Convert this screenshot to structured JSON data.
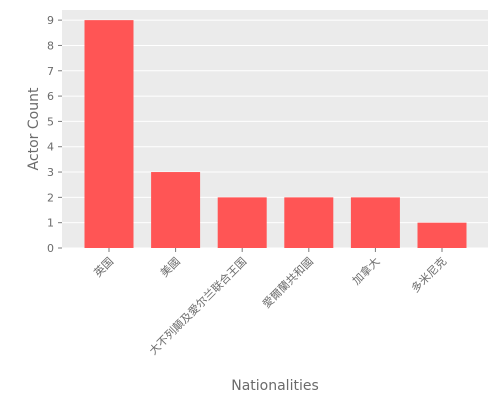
{
  "chart_data": {
    "type": "bar",
    "xlabel": "Nationalities",
    "ylabel": "Actor Count",
    "categories": [
      "英国",
      "美國",
      "大不列顛及愛尔兰联合王国",
      "愛爾蘭共和國",
      "加拿大",
      "多米尼克"
    ],
    "values": [
      9,
      3,
      2,
      2,
      2,
      1
    ],
    "ylim": [
      0,
      9.4
    ],
    "yticks": [
      "0",
      "1",
      "2",
      "3",
      "4",
      "5",
      "6",
      "7",
      "8",
      "9"
    ],
    "grid": true,
    "bar_color": "#ff5555",
    "plot_background": "#ebebeb",
    "grid_color": "#ffffff"
  }
}
